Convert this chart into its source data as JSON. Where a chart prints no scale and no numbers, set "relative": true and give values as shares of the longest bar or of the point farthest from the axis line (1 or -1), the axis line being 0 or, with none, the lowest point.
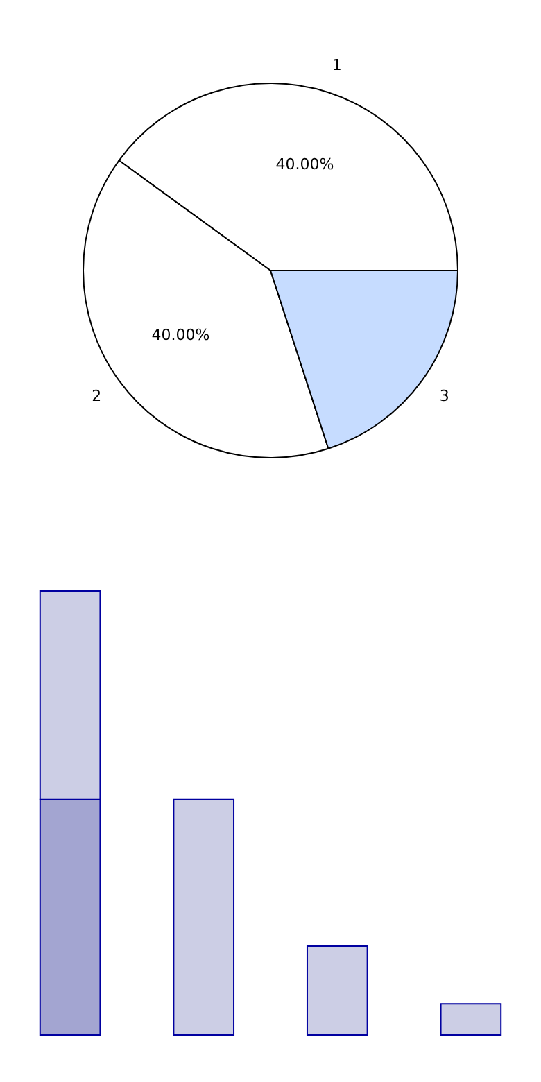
{
  "chart_data": [
    {
      "type": "pie",
      "categories": [
        "1",
        "2",
        "3"
      ],
      "values": [
        40,
        40,
        20
      ],
      "colors": [
        "#ffffff",
        "#ffffff",
        "#c6dcff"
      ],
      "value_labels": [
        "40.00%",
        "40.00%",
        null
      ]
    },
    {
      "type": "bar",
      "relative": true,
      "stacked": true,
      "categories": [
        null,
        null,
        null,
        null
      ],
      "series": [
        {
          "color": "#a3a5d1",
          "values": [
            0.53,
            null,
            null,
            null
          ]
        },
        {
          "color": "#cccee5",
          "values": [
            0.47,
            0.53,
            0.2,
            0.07
          ]
        }
      ]
    }
  ]
}
